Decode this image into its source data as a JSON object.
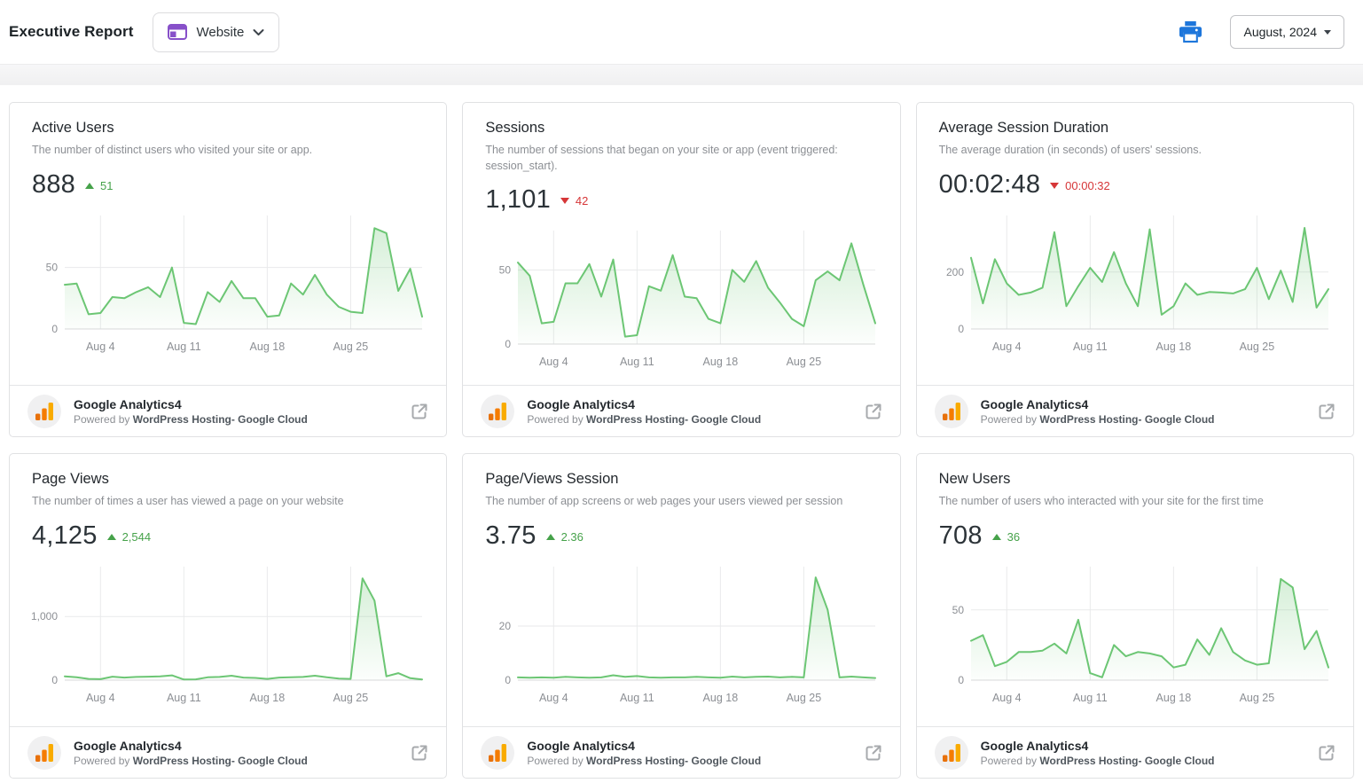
{
  "header": {
    "title": "Executive Report",
    "site_selector_label": "Website",
    "date_selector_label": "August, 2024"
  },
  "source": {
    "name": "Google Analytics4",
    "powered_prefix": "Powered by",
    "powered_bold": "WordPress Hosting- Google Cloud"
  },
  "colors": {
    "line_green": "#6cc674",
    "trend_up_green": "#46a24a",
    "trend_down_red": "#d63638",
    "printer_blue": "#1d76db",
    "site_icon_purple": "#8750c9",
    "ga_logo_orange_dark": "#e8710a",
    "ga_logo_orange_mid": "#f57c00",
    "ga_logo_orange_light": "#f9ab00",
    "axis_text_gray": "#8c8f94"
  },
  "x_axis": {
    "tick_labels": [
      "Aug 4",
      "Aug 11",
      "Aug 18",
      "Aug 25"
    ],
    "tick_days": [
      4,
      11,
      18,
      25
    ],
    "days_in_month": 31
  },
  "cards": [
    {
      "title": "Active Users",
      "description": "The number of distinct users who visited your site or app.",
      "value": "888",
      "trend": "up",
      "delta": "51",
      "chart": {
        "type": "area",
        "ymax": 88,
        "y_ticks": [
          {
            "value": 50,
            "label": "50"
          },
          {
            "value": 0,
            "label": "0"
          }
        ],
        "values": [
          36,
          37,
          12,
          13,
          26,
          25,
          30,
          34,
          26,
          50,
          5,
          4,
          30,
          22,
          39,
          25,
          25,
          10,
          11,
          37,
          28,
          44,
          28,
          18,
          14,
          13,
          82,
          78,
          31,
          49,
          10
        ]
      }
    },
    {
      "title": "Sessions",
      "description": "The number of sessions that began on your site or app (event triggered: session_start).",
      "value": "1,101",
      "trend": "down",
      "delta": "42",
      "chart": {
        "type": "area",
        "ymax": 73,
        "y_ticks": [
          {
            "value": 50,
            "label": "50"
          },
          {
            "value": 0,
            "label": "0"
          }
        ],
        "values": [
          55,
          46,
          14,
          15,
          41,
          41,
          54,
          32,
          57,
          5,
          6,
          39,
          36,
          60,
          32,
          31,
          17,
          14,
          50,
          42,
          56,
          38,
          28,
          17,
          12,
          43,
          49,
          43,
          68,
          40,
          14
        ]
      }
    },
    {
      "title": "Average Session Duration",
      "description": "The average duration (in seconds) of users' sessions.",
      "value": "00:02:48",
      "trend": "down",
      "delta": "00:00:32",
      "chart": {
        "type": "area",
        "ymax": 380,
        "y_ticks": [
          {
            "value": 200,
            "label": "200"
          },
          {
            "value": 0,
            "label": "0"
          }
        ],
        "values": [
          250,
          90,
          245,
          160,
          120,
          128,
          145,
          340,
          80,
          150,
          215,
          165,
          270,
          160,
          80,
          350,
          50,
          80,
          160,
          120,
          130,
          128,
          125,
          140,
          215,
          105,
          205,
          95,
          355,
          75,
          140
        ]
      }
    },
    {
      "title": "Page Views",
      "description": "The number of times a user has viewed a page on your website",
      "value": "4,125",
      "trend": "up",
      "delta": "2,544",
      "chart": {
        "type": "area",
        "ymax": 1700,
        "y_ticks": [
          {
            "value": 1000,
            "label": "1,000"
          },
          {
            "value": 0,
            "label": "0"
          }
        ],
        "values": [
          60,
          45,
          20,
          15,
          55,
          40,
          50,
          55,
          60,
          75,
          10,
          12,
          45,
          50,
          70,
          40,
          35,
          20,
          40,
          45,
          50,
          70,
          45,
          25,
          20,
          1600,
          1250,
          60,
          110,
          30,
          10
        ]
      }
    },
    {
      "title": "Page/Views Session",
      "description": "The number of app screens or web pages your users viewed per session",
      "value": "3.75",
      "trend": "up",
      "delta": "2.36",
      "chart": {
        "type": "area",
        "ymax": 40,
        "y_ticks": [
          {
            "value": 20,
            "label": "20"
          },
          {
            "value": 0,
            "label": "0"
          }
        ],
        "values": [
          1,
          0.9,
          1,
          0.9,
          1.2,
          1,
          0.9,
          1,
          1.8,
          1.2,
          1.5,
          1,
          0.9,
          1,
          1,
          1.2,
          1,
          0.9,
          1.3,
          1,
          1.2,
          1.3,
          1,
          1.2,
          1,
          38,
          26,
          1,
          1.3,
          1,
          0.8
        ]
      }
    },
    {
      "title": "New Users",
      "description": "The number of users who interacted with your site for the first time",
      "value": "708",
      "trend": "up",
      "delta": "36",
      "chart": {
        "type": "area",
        "ymax": 77,
        "y_ticks": [
          {
            "value": 50,
            "label": "50"
          },
          {
            "value": 0,
            "label": "0"
          }
        ],
        "values": [
          28,
          32,
          10,
          13,
          20,
          20,
          21,
          26,
          19,
          43,
          5,
          2,
          25,
          17,
          20,
          19,
          17,
          9,
          11,
          29,
          18,
          37,
          20,
          14,
          11,
          12,
          72,
          66,
          22,
          35,
          9
        ]
      }
    }
  ]
}
